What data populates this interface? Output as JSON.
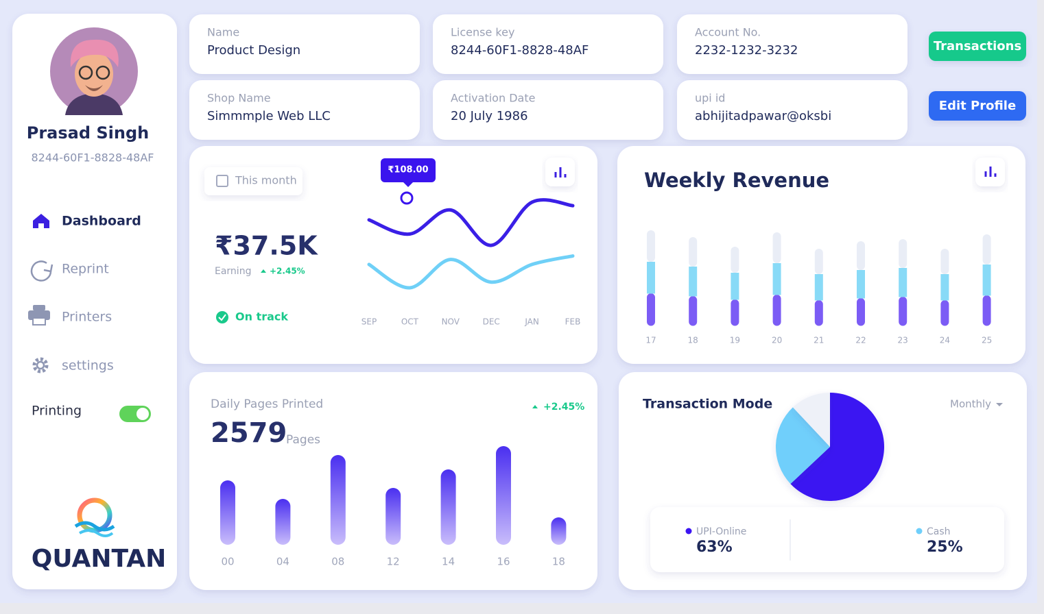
{
  "sidebar": {
    "name": "Prasad Singh",
    "id": "8244-60F1-8828-48AF",
    "nav": [
      "Dashboard",
      "Reprint",
      "Printers",
      "settings"
    ],
    "toggle_label": "Printing",
    "brand": "QUANTAN"
  },
  "info_cards": [
    {
      "label": "Name",
      "value": "Product Design"
    },
    {
      "label": "License key",
      "value": "8244-60F1-8828-48AF"
    },
    {
      "label": "Account No.",
      "value": "2232-1232-3232"
    },
    {
      "label": "Shop Name",
      "value": "Simmmple Web LLC"
    },
    {
      "label": "Activation Date",
      "value": "20 July 1986"
    },
    {
      "label": "upi id",
      "value": "abhijitadpawar@oksbi"
    }
  ],
  "buttons": [
    "Transactions",
    "Edit Profile"
  ],
  "chart_data": [
    {
      "type": "line",
      "filter": "This month",
      "total": "₹37.5K",
      "total_caption": "Earning",
      "change": "+2.45%",
      "status": "On track",
      "annotation": "₹108.00",
      "categories": [
        "SEP",
        "OCT",
        "NOV",
        "DEC",
        "JAN",
        "FEB"
      ],
      "series": [
        {
          "color": "#3a1fe6",
          "values": [
            128,
            108,
            142,
            92,
            153,
            148
          ]
        },
        {
          "color": "#6fd0f7",
          "values": [
            65,
            32,
            72,
            40,
            65,
            77
          ]
        }
      ]
    },
    {
      "type": "bar",
      "stacked": true,
      "title": "Weekly Revenue",
      "categories": [
        "17",
        "18",
        "19",
        "20",
        "21",
        "22",
        "23",
        "24",
        "25"
      ],
      "series": [
        {
          "color": "#7b5cf5",
          "values": [
            47,
            43,
            38,
            45,
            37,
            40,
            42,
            37,
            44
          ]
        },
        {
          "color": "#88daf7",
          "values": [
            46,
            43,
            39,
            46,
            38,
            41,
            42,
            38,
            45
          ]
        },
        {
          "color": "#e9edf6",
          "values": [
            46,
            43,
            38,
            45,
            37,
            42,
            42,
            37,
            44
          ]
        }
      ]
    },
    {
      "type": "bar",
      "title": "Daily Pages Printed",
      "total": "2579",
      "unit": "Pages",
      "change": "+2.45%",
      "categories": [
        "00",
        "04",
        "08",
        "12",
        "14",
        "16",
        "18"
      ],
      "values": [
        94,
        67,
        131,
        83,
        110,
        144,
        40
      ],
      "color": "#4a2ff0"
    },
    {
      "type": "pie",
      "title": "Transaction Mode",
      "period": "Monthly",
      "categories": [
        "UPI-Online",
        "Cash",
        null
      ],
      "values": [
        63,
        25,
        12
      ],
      "value_labels": [
        "63%",
        "25%",
        null
      ],
      "colors": [
        "#3b14f2",
        "#6fcffb",
        "#eef1f8"
      ]
    }
  ]
}
